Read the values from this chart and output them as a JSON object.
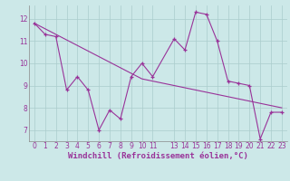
{
  "x_all": [
    0,
    1,
    2,
    3,
    4,
    5,
    6,
    7,
    8,
    9,
    10,
    11,
    13,
    14,
    15,
    16,
    17,
    18,
    19,
    20,
    21,
    22,
    23
  ],
  "y_jagged": [
    11.8,
    11.3,
    11.2,
    8.8,
    9.4,
    8.8,
    7.0,
    7.9,
    7.5,
    9.4,
    10.0,
    9.4,
    11.1,
    10.6,
    12.3,
    12.2,
    11.0,
    9.2,
    9.1,
    9.0,
    6.6,
    7.8,
    7.8
  ],
  "y_trend": [
    11.8,
    11.55,
    11.3,
    11.05,
    10.8,
    10.55,
    10.3,
    10.05,
    9.8,
    9.55,
    9.3,
    9.2,
    9.0,
    8.9,
    8.8,
    8.7,
    8.6,
    8.5,
    8.4,
    8.3,
    8.2,
    8.1,
    8.0
  ],
  "line_color": "#993399",
  "bg_color": "#cce8e8",
  "grid_color": "#aacccc",
  "xlabel": "Windchill (Refroidissement éolien,°C)",
  "ylim": [
    6.5,
    12.6
  ],
  "xlim": [
    -0.5,
    23.5
  ],
  "yticks": [
    7,
    8,
    9,
    10,
    11,
    12
  ],
  "xticks": [
    0,
    1,
    2,
    3,
    4,
    5,
    6,
    7,
    8,
    9,
    10,
    11,
    13,
    14,
    15,
    16,
    17,
    18,
    19,
    20,
    21,
    22,
    23
  ],
  "tick_fontsize": 5.5,
  "xlabel_fontsize": 6.5
}
